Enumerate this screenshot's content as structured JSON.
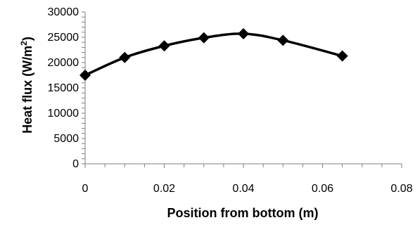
{
  "chart_data": {
    "type": "line",
    "title": "",
    "xlabel": "Position from bottom (m)",
    "ylabel": {
      "prefix": "Heat flux (W/m",
      "superscript": "2",
      "suffix": ")"
    },
    "xlim": [
      0,
      0.08
    ],
    "ylim": [
      0,
      30000
    ],
    "x_ticks": [
      "0",
      "0.02",
      "0.04",
      "0.06",
      "0.08"
    ],
    "y_ticks": [
      "0",
      "5000",
      "10000",
      "15000",
      "20000",
      "25000",
      "30000"
    ],
    "x_minor_step": 0.005,
    "y_minor_step": 1000,
    "grid": false,
    "legend": "none",
    "series": [
      {
        "marker": "diamond",
        "color": "#000000",
        "x": [
          0,
          0.01,
          0.02,
          0.03,
          0.04,
          0.05,
          0.065
        ],
        "y": [
          17500,
          21000,
          23300,
          24900,
          25700,
          24400,
          21300
        ]
      }
    ]
  }
}
